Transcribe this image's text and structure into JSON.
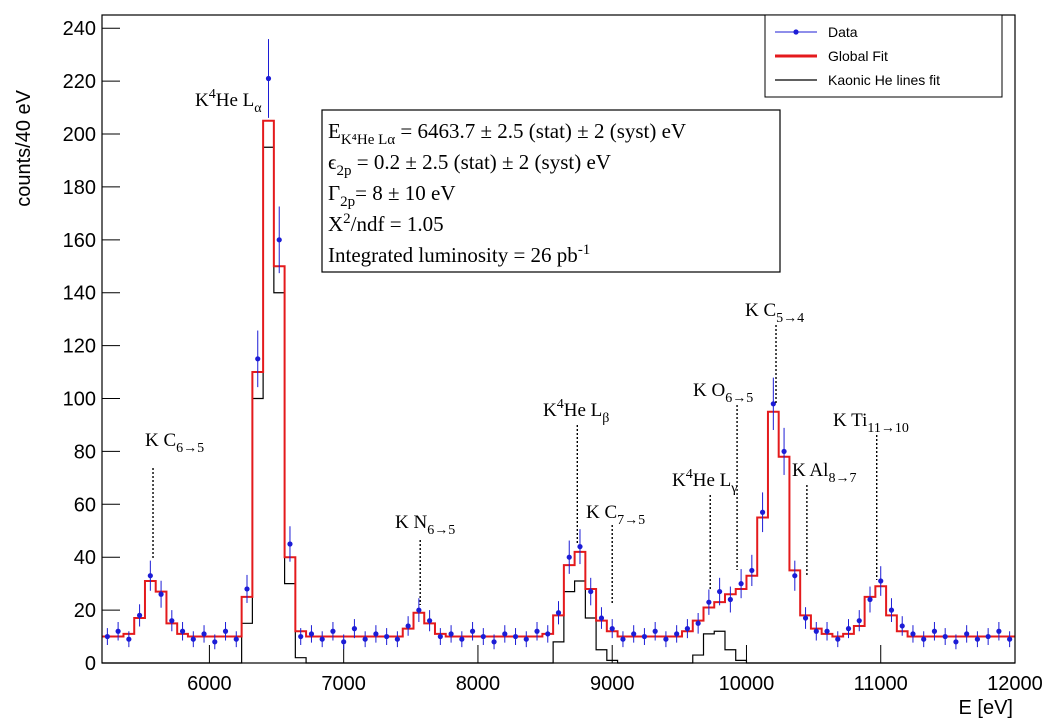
{
  "chart_data": {
    "type": "line",
    "y_label": "counts/40 eV",
    "x_label": "E [eV]",
    "xlim": [
      5200,
      12000
    ],
    "ylim": [
      0,
      245
    ],
    "xticks": [
      6000,
      7000,
      8000,
      9000,
      10000,
      11000,
      12000
    ],
    "yticks": [
      0,
      20,
      40,
      60,
      80,
      100,
      120,
      140,
      160,
      180,
      200,
      220,
      240
    ],
    "legend": "top-right",
    "x": [
      5240,
      5320,
      5400,
      5480,
      5560,
      5640,
      5720,
      5800,
      5880,
      5960,
      6040,
      6120,
      6200,
      6280,
      6360,
      6440,
      6520,
      6600,
      6680,
      6760,
      6840,
      6920,
      7000,
      7080,
      7160,
      7240,
      7320,
      7400,
      7480,
      7560,
      7640,
      7720,
      7800,
      7880,
      7960,
      8040,
      8120,
      8200,
      8280,
      8360,
      8440,
      8520,
      8600,
      8680,
      8760,
      8840,
      8920,
      9000,
      9080,
      9160,
      9240,
      9320,
      9400,
      9480,
      9560,
      9640,
      9720,
      9800,
      9880,
      9960,
      10040,
      10120,
      10200,
      10280,
      10360,
      10440,
      10520,
      10600,
      10680,
      10760,
      10840,
      10920,
      11000,
      11080,
      11160,
      11240,
      11320,
      11400,
      11480,
      11560,
      11640,
      11720,
      11800,
      11880,
      11960
    ],
    "series": [
      {
        "name": "Data",
        "color": "#1c1cd6",
        "style": "points",
        "values": [
          10,
          12,
          9,
          18,
          33,
          26,
          16,
          12,
          9,
          11,
          8,
          12,
          9,
          28,
          115,
          221,
          160,
          45,
          10,
          11,
          9,
          12,
          8,
          13,
          9,
          11,
          10,
          9,
          14,
          20,
          16,
          10,
          11,
          9,
          12,
          10,
          8,
          11,
          10,
          9,
          12,
          11,
          19,
          40,
          44,
          27,
          17,
          13,
          9,
          11,
          10,
          12,
          9,
          11,
          13,
          15,
          23,
          27,
          24,
          30,
          35,
          57,
          98,
          80,
          33,
          17,
          12,
          12,
          9,
          13,
          16,
          24,
          31,
          20,
          14,
          11,
          9,
          12,
          10,
          8,
          11,
          9,
          10,
          12,
          9
        ],
        "errors": [
          3.2,
          3.5,
          3,
          4.2,
          5.7,
          5.1,
          4,
          3.5,
          3,
          3.3,
          2.8,
          3.5,
          3,
          5.3,
          10.7,
          14.9,
          12.6,
          6.7,
          3.2,
          3.3,
          3,
          3.5,
          2.8,
          3.6,
          3,
          3.3,
          3.2,
          3,
          3.7,
          4.5,
          4,
          3.2,
          3.3,
          3,
          3.5,
          3.2,
          2.8,
          3.3,
          3.2,
          3,
          3.5,
          3.3,
          4.4,
          6.3,
          6.6,
          5.2,
          4.1,
          3.6,
          3,
          3.3,
          3.2,
          3.5,
          3,
          3.3,
          3.6,
          3.9,
          4.8,
          5.2,
          4.9,
          5.5,
          5.9,
          7.5,
          9.9,
          8.9,
          5.7,
          4.1,
          3.5,
          3.5,
          3,
          3.6,
          4,
          4.9,
          5.6,
          4.5,
          3.7,
          3.3,
          3,
          3.5,
          3.2,
          2.8,
          3.3,
          3,
          3.2,
          3.5,
          3
        ]
      },
      {
        "name": "Global Fit",
        "color": "#e41a1c",
        "style": "step",
        "values": [
          10,
          10,
          11,
          17,
          31,
          27,
          15,
          11,
          10,
          10,
          10,
          10,
          10,
          25,
          110,
          205,
          150,
          40,
          12,
          10,
          10,
          10,
          10,
          10,
          10,
          10,
          10,
          10,
          13,
          19,
          15,
          11,
          10,
          10,
          10,
          10,
          10,
          10,
          10,
          10,
          10,
          11,
          18,
          37,
          42,
          28,
          16,
          12,
          10,
          10,
          10,
          10,
          10,
          10,
          12,
          16,
          21,
          23,
          26,
          28,
          33,
          55,
          95,
          78,
          35,
          18,
          13,
          11,
          10,
          11,
          14,
          25,
          29,
          18,
          12,
          10,
          10,
          10,
          10,
          10,
          10,
          10,
          10,
          10,
          10
        ]
      },
      {
        "name": "Kaonic He lines fit",
        "color": "#000000",
        "style": "step",
        "values": [
          0,
          0,
          0,
          0,
          0,
          0,
          0,
          0,
          0,
          0,
          0,
          0,
          0,
          15,
          100,
          195,
          140,
          30,
          2,
          0,
          0,
          0,
          0,
          0,
          0,
          0,
          0,
          0,
          0,
          0,
          0,
          0,
          0,
          0,
          0,
          0,
          0,
          0,
          0,
          0,
          0,
          0,
          8,
          27,
          31,
          17,
          5,
          1,
          0,
          0,
          0,
          0,
          0,
          0,
          0,
          3,
          11,
          12,
          5,
          1,
          0,
          0,
          0,
          0,
          0,
          0,
          0,
          0,
          0,
          0,
          0,
          0,
          0,
          0,
          0,
          0,
          0,
          0,
          0,
          0,
          0,
          0,
          0,
          0,
          0
        ]
      }
    ],
    "annotations": [
      {
        "x": 5580,
        "parts": [
          {
            "text": "K C"
          },
          {
            "text": "6→5",
            "shift": "sub"
          }
        ]
      },
      {
        "parts": [
          {
            "text": "K"
          },
          {
            "text": "4",
            "shift": "sup"
          },
          {
            "text": "He L"
          },
          {
            "text": "α",
            "shift": "sub"
          }
        ]
      },
      {
        "x": 7570,
        "parts": [
          {
            "text": "K N"
          },
          {
            "text": "6→5",
            "shift": "sub"
          }
        ]
      },
      {
        "x": 8740,
        "parts": [
          {
            "text": "K"
          },
          {
            "text": "4",
            "shift": "sup"
          },
          {
            "text": "He L"
          },
          {
            "text": "β",
            "shift": "sub"
          }
        ]
      },
      {
        "x": 9000,
        "parts": [
          {
            "text": "K C"
          },
          {
            "text": "7→5",
            "shift": "sub"
          }
        ]
      },
      {
        "x": 9730,
        "parts": [
          {
            "text": "K"
          },
          {
            "text": "4",
            "shift": "sup"
          },
          {
            "text": "He L"
          },
          {
            "text": "γ",
            "shift": "sub"
          }
        ]
      },
      {
        "x": 9930,
        "parts": [
          {
            "text": "K O"
          },
          {
            "text": "6→5",
            "shift": "sub"
          }
        ]
      },
      {
        "x": 10220,
        "parts": [
          {
            "text": "K C"
          },
          {
            "text": "5→4",
            "shift": "sub"
          }
        ]
      },
      {
        "x": 10450,
        "parts": [
          {
            "text": "K Al"
          },
          {
            "text": "8→7",
            "shift": "sub"
          }
        ]
      },
      {
        "x": 10970,
        "parts": [
          {
            "text": "K Ti"
          },
          {
            "text": "11→10",
            "shift": "sub"
          }
        ]
      }
    ],
    "stats": [
      {
        "parts": [
          {
            "text": "E"
          },
          {
            "text": "K⁴He Lα",
            "shift": "sub"
          },
          {
            "text": " = 6463.7 ± 2.5 (stat) ± 2 (syst) eV"
          }
        ]
      },
      {
        "parts": [
          {
            "text": "ϵ"
          },
          {
            "text": "2p",
            "shift": "sub"
          },
          {
            "text": " = 0.2 ± 2.5 (stat) ± 2 (syst) eV"
          }
        ]
      },
      {
        "parts": [
          {
            "text": "Γ"
          },
          {
            "text": "2p",
            "shift": "sub"
          },
          {
            "text": "= 8 ± 10 eV"
          }
        ]
      },
      {
        "parts": [
          {
            "text": "X"
          },
          {
            "text": "2",
            "shift": "sup"
          },
          {
            "text": "/ndf = 1.05"
          }
        ]
      },
      {
        "parts": [
          {
            "text": "Integrated luminosity = 26 pb"
          },
          {
            "text": "-1",
            "shift": "sup"
          }
        ]
      }
    ]
  }
}
